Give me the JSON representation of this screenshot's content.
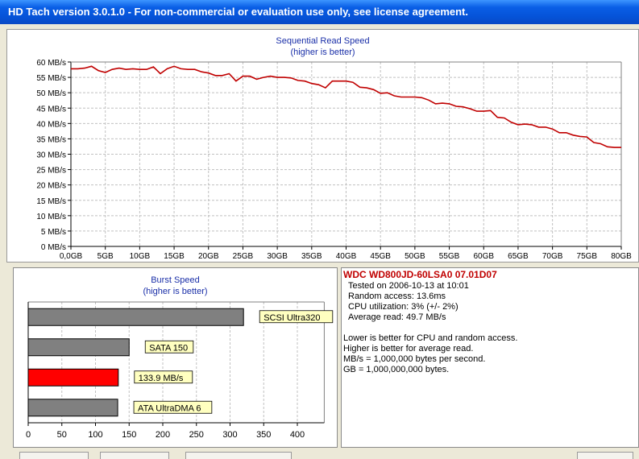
{
  "window": {
    "title": "HD Tach version 3.0.1.0  - For non-commercial or evaluation use only, see license agreement."
  },
  "seq_chart": {
    "title": "Sequential Read Speed",
    "subtitle": "(higher is better)"
  },
  "burst_chart": {
    "title": "Burst Speed",
    "subtitle": "(higher is better)"
  },
  "drive": {
    "name": "WDC WD800JD-60LSA0 07.01D07",
    "tested": "Tested on 2006-10-13 at 10:01",
    "random_access": "Random access: 13.6ms",
    "cpu": "CPU utilization: 3% (+/- 2%)",
    "avg_read": "Average read: 49.7 MB/s"
  },
  "notes": [
    "Lower is better for CPU and random access.",
    "Higher is better for average read.",
    "MB/s = 1,000,000 bytes per second.",
    "GB = 1,000,000,000 bytes."
  ],
  "colors": {
    "line": "#c00000",
    "bar_gray": "#808080",
    "bar_highlight": "#ff0000",
    "label_bg": "#ffffc0",
    "grid": "#c0c0c0"
  },
  "chart_data": [
    {
      "type": "line",
      "title": "Sequential Read Speed",
      "subtitle": "(higher is better)",
      "ylim": [
        0,
        60
      ],
      "y_ticks": [
        "0 MB/s",
        "5 MB/s",
        "10 MB/s",
        "15 MB/s",
        "20 MB/s",
        "25 MB/s",
        "30 MB/s",
        "35 MB/s",
        "40 MB/s",
        "45 MB/s",
        "50 MB/s",
        "55 MB/s",
        "60 MB/s"
      ],
      "xlim": [
        0,
        80
      ],
      "x_ticks": [
        "0,0GB",
        "5GB",
        "10GB",
        "15GB",
        "20GB",
        "25GB",
        "30GB",
        "35GB",
        "40GB",
        "45GB",
        "50GB",
        "55GB",
        "60GB",
        "65GB",
        "70GB",
        "75GB",
        "80GB"
      ],
      "grid": true,
      "x": [
        0,
        1,
        2,
        3,
        4,
        5,
        6,
        7,
        8,
        9,
        10,
        11,
        12,
        13,
        14,
        15,
        16,
        17,
        18,
        19,
        20,
        21,
        22,
        23,
        24,
        25,
        26,
        27,
        28,
        29,
        30,
        31,
        32,
        33,
        34,
        35,
        36,
        37,
        38,
        39,
        40,
        41,
        42,
        43,
        44,
        45,
        46,
        47,
        48,
        49,
        50,
        51,
        52,
        53,
        54,
        55,
        56,
        57,
        58,
        59,
        60,
        61,
        62,
        63,
        64,
        65,
        66,
        67,
        68,
        69,
        70,
        71,
        72,
        73,
        74,
        75,
        76,
        77,
        78,
        79,
        80
      ],
      "y": [
        57.8,
        57.8,
        58.0,
        58.6,
        57.2,
        56.6,
        57.6,
        58.0,
        57.6,
        57.8,
        57.6,
        57.6,
        58.4,
        56.2,
        57.8,
        58.6,
        57.8,
        57.6,
        57.6,
        56.8,
        56.4,
        55.6,
        55.6,
        56.2,
        53.8,
        55.4,
        55.4,
        54.4,
        55.0,
        55.4,
        55.0,
        55.0,
        54.8,
        54.0,
        53.8,
        53.0,
        52.6,
        51.6,
        53.8,
        53.8,
        53.8,
        53.4,
        51.8,
        51.6,
        51.0,
        49.8,
        50.0,
        49.0,
        48.6,
        48.6,
        48.6,
        48.4,
        47.6,
        46.4,
        46.6,
        46.4,
        45.6,
        45.4,
        44.8,
        44.0,
        44.0,
        44.2,
        42.0,
        41.8,
        40.4,
        39.6,
        39.8,
        39.6,
        38.8,
        38.8,
        38.2,
        37.0,
        37.0,
        36.2,
        35.8,
        35.6,
        33.8,
        33.4,
        32.4,
        32.2,
        32.2
      ]
    },
    {
      "type": "bar",
      "orientation": "horizontal",
      "title": "Burst Speed",
      "subtitle": "(higher is better)",
      "xlim": [
        0,
        440
      ],
      "x_ticks": [
        "0",
        "50",
        "100",
        "150",
        "200",
        "250",
        "300",
        "350",
        "400"
      ],
      "grid": true,
      "categories": [
        "SCSI Ultra320",
        "SATA 150",
        "133.9 MB/s",
        "ATA UltraDMA 6"
      ],
      "values": [
        320,
        150,
        133.9,
        133
      ],
      "highlight": [
        false,
        false,
        true,
        false
      ]
    }
  ]
}
